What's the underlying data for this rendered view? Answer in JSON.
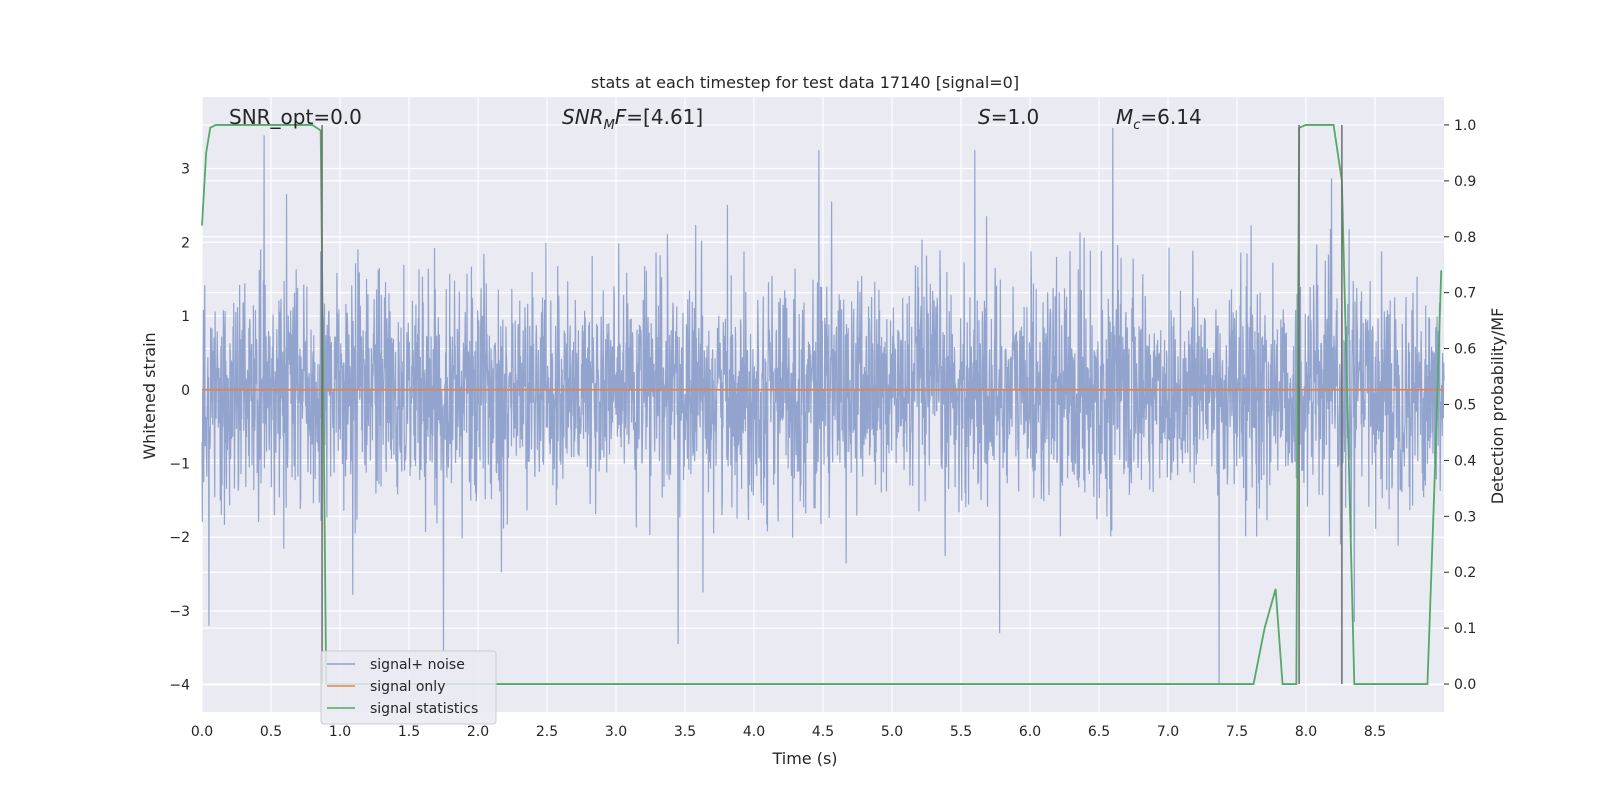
{
  "chart_data": {
    "type": "line",
    "title": "stats at each timestep for test data 17140 [signal=0]",
    "xlabel": "Time (s)",
    "ylabel": "Whitened strain",
    "y2label": "Detection probability/MF",
    "xlim": [
      0.0,
      9.0
    ],
    "ylim": [
      -4.37,
      3.97
    ],
    "y2lim": [
      -0.05,
      1.05
    ],
    "xticks": [
      "0.0",
      "0.5",
      "1.0",
      "1.5",
      "2.0",
      "2.5",
      "3.0",
      "3.5",
      "4.0",
      "4.5",
      "5.0",
      "5.5",
      "6.0",
      "6.5",
      "7.0",
      "7.5",
      "8.0",
      "8.5"
    ],
    "xtick_values": [
      0.0,
      0.5,
      1.0,
      1.5,
      2.0,
      2.5,
      3.0,
      3.5,
      4.0,
      4.5,
      5.0,
      5.5,
      6.0,
      6.5,
      7.0,
      7.5,
      8.0,
      8.5
    ],
    "yticks": [
      "3",
      "2",
      "1",
      "0",
      "−1",
      "−2",
      "−3",
      "−4"
    ],
    "ytick_values": [
      3,
      2,
      1,
      0,
      -1,
      -2,
      -3,
      -4
    ],
    "y2ticks": [
      "1.0",
      "0.9",
      "0.8",
      "0.7",
      "0.6",
      "0.5",
      "0.4",
      "0.3",
      "0.2",
      "0.1",
      "0.0"
    ],
    "y2tick_values": [
      1.0,
      0.9,
      0.8,
      0.7,
      0.6,
      0.5,
      0.4,
      0.3,
      0.2,
      0.1,
      0.0
    ],
    "annotations": {
      "snr_opt": "SNR_opt=0.0",
      "snr_mf_main": "SNR",
      "snr_mf_sub": "M",
      "snr_mf_f": "F",
      "snr_mf_value": "=[4.61]",
      "s_main": "S",
      "s_value": "=1.0",
      "mc_main": "M",
      "mc_sub": "c",
      "mc_value": "=6.14"
    },
    "series": [
      {
        "name": "signal+ noise",
        "color": "#8da0cb",
        "kind": "noise",
        "sample_rate": 400,
        "envelope_std": 0.75,
        "spikes": [
          [
            0.45,
            3.45
          ],
          [
            0.05,
            -3.2
          ],
          [
            1.75,
            -3.55
          ],
          [
            3.45,
            -3.45
          ],
          [
            4.47,
            3.25
          ],
          [
            5.6,
            3.25
          ],
          [
            6.6,
            3.55
          ],
          [
            5.78,
            -3.3
          ],
          [
            7.37,
            -4.0
          ],
          [
            8.35,
            -3.15
          ]
        ]
      },
      {
        "name": "signal only",
        "color": "#dd8452",
        "kind": "line",
        "x": [
          0.0,
          9.0
        ],
        "y": [
          0.0,
          0.0
        ]
      },
      {
        "name": "signal statistics",
        "color": "#55a868",
        "kind": "line",
        "axis": "right",
        "x": [
          0.0,
          0.03,
          0.06,
          0.1,
          0.2,
          0.5,
          0.8,
          0.86,
          0.88,
          0.9,
          0.95,
          1.5,
          3.0,
          5.0,
          5.8,
          7.0,
          7.5,
          7.62,
          7.7,
          7.78,
          7.83,
          7.88,
          7.93,
          7.95,
          8.0,
          8.05,
          8.1,
          8.2,
          8.26,
          8.3,
          8.35,
          8.4,
          8.6,
          8.8,
          8.88,
          8.93,
          8.98
        ],
        "y": [
          0.82,
          0.95,
          0.995,
          1.0,
          1.0,
          1.0,
          1.0,
          0.99,
          0.5,
          0.0,
          0.0,
          0.0,
          0.0,
          0.0,
          0.0,
          0.0,
          0.0,
          0.0,
          0.1,
          0.17,
          0.0,
          0.0,
          0.0,
          0.995,
          1.0,
          1.0,
          1.0,
          1.0,
          0.9,
          0.5,
          0.0,
          0.0,
          0.0,
          0.0,
          0.0,
          0.35,
          0.74
        ]
      }
    ],
    "vlines": [
      {
        "x": 0.87,
        "y_top": 1.0,
        "y_bottom": 0.0,
        "color": "#6e6e6e"
      },
      {
        "x": 7.95,
        "y_top": 1.0,
        "y_bottom": 0.0,
        "color": "#6e6e6e"
      },
      {
        "x": 8.26,
        "y_top": 1.0,
        "y_bottom": 0.0,
        "color": "#6e6e6e"
      }
    ],
    "legend": {
      "placement": "lower-left",
      "entries": [
        "signal+ noise",
        "signal only",
        "signal statistics"
      ]
    },
    "grid": true
  }
}
